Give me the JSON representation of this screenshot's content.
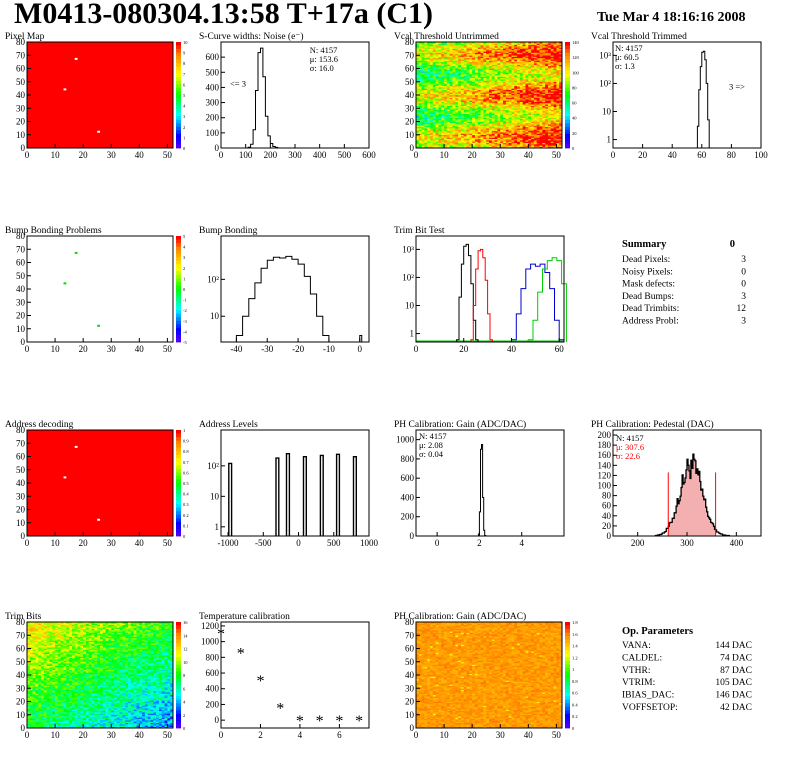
{
  "header": {
    "title": "M0413-080304.13:58 T+17a (C1)",
    "date": "Tue Mar  4 18:16:16 2008"
  },
  "colors": {
    "hist": "#000000",
    "red": "#ff0000",
    "blue": "#0000cc",
    "green": "#00cc00",
    "pedfill": "#f4b0b0"
  },
  "palette": [
    "#4b00ff",
    "#0000ff",
    "#0080ff",
    "#00ffff",
    "#00ff80",
    "#00ff00",
    "#80ff00",
    "#ffff00",
    "#ffc000",
    "#ff8000",
    "#ff0000"
  ],
  "chart_data": [
    {
      "id": "pixel-map",
      "type": "heatmap",
      "title": "Pixel Map",
      "xticks": [
        0,
        10,
        20,
        30,
        40,
        50
      ],
      "yticks": [
        0,
        10,
        20,
        30,
        40,
        50,
        60,
        70,
        80
      ],
      "xlim": [
        0,
        52
      ],
      "ylim": [
        0,
        80
      ],
      "zlabels": [
        "10",
        "9",
        "8",
        "7",
        "6",
        "5",
        "4",
        "3",
        "2",
        "1",
        "0"
      ],
      "fill": "#ff0000",
      "defects": [
        {
          "x": 17,
          "y": 67
        },
        {
          "x": 13,
          "y": 44
        },
        {
          "x": 25,
          "y": 12
        }
      ]
    },
    {
      "id": "scurve-noise",
      "type": "histogram",
      "title": "S-Curve widths: Noise (e⁻)",
      "xticks": [
        0,
        100,
        200,
        300,
        400,
        500,
        600
      ],
      "xlim": [
        0,
        600
      ],
      "ylim": [
        0,
        700
      ],
      "yticks": [
        0,
        100,
        200,
        300,
        400,
        500,
        600
      ],
      "stats": [
        "N: 4157",
        "μ: 153.6",
        "σ: 16.0"
      ],
      "underflow": "<= 3",
      "x": [
        100,
        110,
        120,
        130,
        140,
        150,
        160,
        170,
        180,
        190,
        200,
        210,
        220,
        230
      ],
      "values": [
        0,
        5,
        25,
        120,
        380,
        630,
        660,
        470,
        210,
        80,
        30,
        10,
        4,
        0
      ]
    },
    {
      "id": "vcal-untrimmed",
      "type": "heatmap",
      "title": "Vcal Threshold Untrimmed",
      "xticks": [
        0,
        10,
        20,
        30,
        40,
        50
      ],
      "yticks": [
        0,
        10,
        20,
        30,
        40,
        50,
        60,
        70,
        80
      ],
      "xlim": [
        0,
        52
      ],
      "ylim": [
        0,
        80
      ],
      "zlabels": [
        "140",
        "120",
        "100",
        "80",
        "60",
        "40",
        "20",
        "0"
      ]
    },
    {
      "id": "vcal-trimmed",
      "type": "histogram",
      "title": "Vcal Threshold Trimmed",
      "xticks": [
        0,
        20,
        40,
        60,
        80,
        100
      ],
      "xlim": [
        0,
        100
      ],
      "logy": true,
      "ylim": [
        0.5,
        3000
      ],
      "yticks": [
        {
          "v": 1,
          "l": "1"
        },
        {
          "v": 10,
          "l": "10"
        },
        {
          "v": 100,
          "l": "10²"
        },
        {
          "v": 1000,
          "l": "10³"
        }
      ],
      "stats": [
        "N: 4157",
        "μ: 60.5",
        "σ:  1.3"
      ],
      "overflow": "3 =>",
      "x": [
        56,
        57,
        58,
        59,
        60,
        61,
        62,
        63,
        64,
        65
      ],
      "values": [
        0,
        3,
        60,
        400,
        1300,
        1400,
        700,
        100,
        5,
        0
      ]
    },
    {
      "id": "bump-problems",
      "type": "heatmap",
      "title": "Bump Bonding Problems",
      "xticks": [
        0,
        10,
        20,
        30,
        40,
        50
      ],
      "yticks": [
        0,
        10,
        20,
        30,
        40,
        50,
        60,
        70,
        80
      ],
      "xlim": [
        0,
        52
      ],
      "ylim": [
        0,
        80
      ],
      "zlabels": [
        "5",
        "4",
        "3",
        "2",
        "1",
        "0",
        "-1",
        "-2",
        "-3",
        "-4",
        "-5"
      ],
      "fill": "#ffffff",
      "defects": [
        {
          "x": 17,
          "y": 67
        },
        {
          "x": 13,
          "y": 44
        },
        {
          "x": 25,
          "y": 12
        }
      ]
    },
    {
      "id": "bump-bonding",
      "type": "histogram",
      "title": "Bump Bonding",
      "xticks": [
        -40,
        -30,
        -20,
        -10,
        0
      ],
      "xlim": [
        -45,
        3
      ],
      "logy": true,
      "ylim": [
        2,
        1500
      ],
      "yticks": [
        {
          "v": 10,
          "l": "10"
        },
        {
          "v": 100,
          "l": "10²"
        }
      ],
      "x": [
        -40,
        -38,
        -36,
        -34,
        -32,
        -30,
        -28,
        -26,
        -24,
        -22,
        -20,
        -18,
        -16,
        -14,
        -12,
        -10,
        -8
      ],
      "values": [
        3,
        10,
        30,
        80,
        200,
        330,
        400,
        380,
        420,
        350,
        260,
        120,
        40,
        10,
        3,
        2,
        2
      ],
      "spike_x": 0,
      "spike_value": 3
    },
    {
      "id": "trim-bit-test",
      "type": "line",
      "title": "Trim Bit Test",
      "xticks": [
        0,
        20,
        40,
        60
      ],
      "xlim": [
        0,
        62
      ],
      "logy": true,
      "ylim": [
        0.5,
        3000
      ],
      "yticks": [
        {
          "v": 1,
          "l": "1"
        },
        {
          "v": 10,
          "l": "10"
        },
        {
          "v": 100,
          "l": "10²"
        },
        {
          "v": 1000,
          "l": "10³"
        }
      ],
      "series": [
        {
          "color": "black",
          "x": [
            17,
            18,
            19,
            20,
            21,
            22,
            23,
            24,
            25
          ],
          "values": [
            0.6,
            20,
            300,
            1300,
            1500,
            600,
            60,
            3,
            0.6
          ]
        },
        {
          "color": "red",
          "x": [
            23,
            24,
            25,
            26,
            27,
            28,
            29,
            30,
            31
          ],
          "values": [
            0.6,
            10,
            200,
            900,
            1000,
            500,
            80,
            5,
            0.6
          ]
        },
        {
          "color": "blue",
          "x": [
            40,
            42,
            44,
            46,
            48,
            50,
            52,
            54,
            56,
            58,
            60
          ],
          "values": [
            0.6,
            5,
            40,
            200,
            300,
            250,
            300,
            150,
            40,
            3,
            0.6
          ]
        },
        {
          "color": "green",
          "x": [
            47,
            49,
            51,
            53,
            55,
            57,
            59,
            61
          ],
          "values": [
            0.6,
            3,
            30,
            200,
            400,
            500,
            400,
            60
          ]
        }
      ]
    },
    {
      "id": "ph-gain-hist",
      "type": "histogram",
      "title": "PH Calibration: Gain (ADC/DAC)",
      "xticks": [
        0,
        2,
        4
      ],
      "xlim": [
        -1,
        6
      ],
      "ylim": [
        0,
        1100
      ],
      "yticks": [
        0,
        200,
        400,
        600,
        800,
        1000
      ],
      "stats": [
        "N: 4157",
        "μ: 2.08",
        "σ: 0.04"
      ],
      "x": [
        1.9,
        1.95,
        2.0,
        2.05,
        2.1,
        2.15,
        2.2,
        2.25,
        2.3
      ],
      "values": [
        0,
        20,
        250,
        900,
        950,
        400,
        60,
        5,
        0
      ]
    },
    {
      "id": "address-decoding",
      "type": "heatmap",
      "title": "Address decoding",
      "xticks": [
        0,
        10,
        20,
        30,
        40,
        50
      ],
      "yticks": [
        0,
        10,
        20,
        30,
        40,
        50,
        60,
        70,
        80
      ],
      "xlim": [
        0,
        52
      ],
      "ylim": [
        0,
        80
      ],
      "zlabels": [
        "1",
        "0.9",
        "0.8",
        "0.7",
        "0.6",
        "0.5",
        "0.4",
        "0.3",
        "0.2",
        "0.1",
        "0"
      ],
      "fill": "#ff0000",
      "defects": [
        {
          "x": 17,
          "y": 67
        },
        {
          "x": 13,
          "y": 44
        },
        {
          "x": 25,
          "y": 12
        }
      ]
    },
    {
      "id": "address-levels",
      "type": "histogram",
      "title": "Address Levels",
      "xticks": [
        -1000,
        -500,
        0,
        500,
        1000
      ],
      "xlim": [
        -1100,
        1000
      ],
      "logy": true,
      "ylim": [
        0.5,
        1500
      ],
      "yticks": [
        {
          "v": 1,
          "l": "1"
        },
        {
          "v": 10,
          "l": "10"
        },
        {
          "v": 100,
          "l": "10²"
        }
      ],
      "peaks": [
        {
          "x": -970,
          "h": 120,
          "w": 40
        },
        {
          "x": -300,
          "h": 180,
          "w": 40
        },
        {
          "x": -150,
          "h": 250,
          "w": 40
        },
        {
          "x": 90,
          "h": 200,
          "w": 40
        },
        {
          "x": 330,
          "h": 220,
          "w": 40
        },
        {
          "x": 560,
          "h": 240,
          "w": 40
        },
        {
          "x": 800,
          "h": 200,
          "w": 40
        }
      ]
    },
    {
      "id": "ph-gain-pixels",
      "type": "heatmap",
      "title": "PH Calibration: Gain (ADC/DAC)",
      "xticks": [
        0,
        10,
        20,
        30,
        40,
        50
      ],
      "yticks": [
        0,
        10,
        20,
        30,
        40,
        50,
        60,
        70,
        80
      ],
      "xlim": [
        0,
        52
      ],
      "ylim": [
        0,
        80
      ],
      "zlabels": [
        "1.8",
        "1.6",
        "1.4",
        "1.2",
        "1",
        "0.8",
        "0.6",
        "0.4",
        "0.2",
        "0"
      ]
    },
    {
      "id": "ph-pedestal",
      "type": "histogram",
      "title": "PH Calibration: Pedestal (DAC)",
      "xticks": [
        200,
        300,
        400
      ],
      "xlim": [
        150,
        450
      ],
      "ylim": [
        0,
        210
      ],
      "yticks": [
        0,
        20,
        40,
        60,
        80,
        100,
        120,
        140,
        160,
        180,
        200
      ],
      "stats": [
        "N: 4157",
        "μ: 307.6",
        "σ: 22.6"
      ],
      "fit_range": [
        262,
        358
      ],
      "mean": 307.6,
      "sigma": 22.6,
      "peak": 140
    },
    {
      "id": "trim-bits",
      "type": "heatmap",
      "title": "Trim Bits",
      "xticks": [
        0,
        10,
        20,
        30,
        40,
        50
      ],
      "yticks": [
        0,
        10,
        20,
        30,
        40,
        50,
        60,
        70,
        80
      ],
      "xlim": [
        0,
        52
      ],
      "ylim": [
        0,
        80
      ],
      "zlabels": [
        "16",
        "14",
        "12",
        "10",
        "8",
        "6",
        "4",
        "2",
        "0"
      ]
    },
    {
      "id": "temperature-calibration",
      "type": "scatter",
      "title": "Temperature calibration",
      "xticks": [
        0,
        2,
        4,
        6
      ],
      "xlim": [
        0,
        7.5
      ],
      "ylim": [
        -100,
        1250
      ],
      "yticks": [
        0,
        200,
        400,
        600,
        800,
        1000,
        1200
      ],
      "x": [
        0,
        1,
        2,
        3,
        4,
        5,
        6,
        7
      ],
      "values": [
        1110,
        860,
        510,
        160,
        0,
        0,
        0,
        0
      ]
    },
    {
      "id": "ph-gain-map",
      "type": "heatmap",
      "title": "PH Calibration: Gain (ADC/DAC)",
      "xticks": [
        0,
        10,
        20,
        30,
        40,
        50
      ],
      "yticks": [
        0,
        10,
        20,
        30,
        40,
        50,
        60,
        70,
        80
      ],
      "xlim": [
        0,
        52
      ],
      "ylim": [
        0,
        80
      ],
      "zlabels": [
        "1.8",
        "1.6",
        "1.4",
        "1.2",
        "1",
        "0.8",
        "0.6",
        "0.4",
        "0.2",
        "0"
      ]
    }
  ],
  "summary": {
    "title": "Summary",
    "value": "0",
    "rows": [
      {
        "label": "Dead Pixels:",
        "value": "3"
      },
      {
        "label": "Noisy Pixels:",
        "value": "0"
      },
      {
        "label": "Mask defects:",
        "value": "0"
      },
      {
        "label": "Dead Bumps:",
        "value": "3"
      },
      {
        "label": "Dead Trimbits:",
        "value": "12"
      },
      {
        "label": "Address Probl:",
        "value": "3"
      }
    ]
  },
  "params": {
    "title": "Op. Parameters",
    "rows": [
      {
        "label": "VANA:",
        "value": "144 DAC"
      },
      {
        "label": "CALDEL:",
        "value": "74 DAC"
      },
      {
        "label": "VTHR:",
        "value": "87 DAC"
      },
      {
        "label": "VTRIM:",
        "value": "105 DAC"
      },
      {
        "label": "IBIAS_DAC:",
        "value": "146 DAC"
      },
      {
        "label": "VOFFSETOP:",
        "value": "42 DAC"
      }
    ]
  }
}
